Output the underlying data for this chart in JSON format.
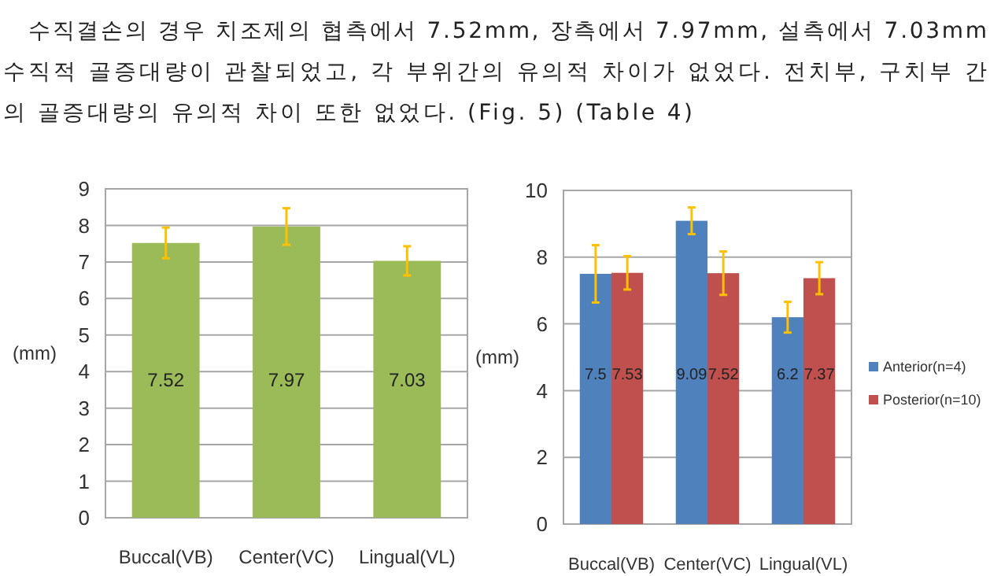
{
  "chart_data": [
    {
      "type": "bar",
      "annotations": [
        "수직결손의 경우 치조제의 협측에서 7.52mm, 장측에서 7.97mm, 설측에서 7.03mm",
        "수직적 골증대량이 관찰되었고, 각 부위간의 유의적 차이가 없었다. 전치부, 구치부 간",
        "의 골증대량의 유의적 차이 또한 없었다. (Fig. 5) (Table 4)"
      ],
      "ylabel": "(mm)",
      "categories": [
        "Buccal(VB)",
        "Center(VC)",
        "Lingual(VL)"
      ],
      "series": [
        {
          "color": "#9bbb59",
          "values": [
            7.52,
            7.97,
            7.03
          ],
          "errors": [
            0.42,
            0.5,
            0.4
          ]
        }
      ],
      "ylim": [
        0,
        9
      ],
      "yticks": [
        0,
        1,
        2,
        3,
        4,
        5,
        6,
        7,
        8,
        9
      ],
      "grid": "y",
      "data_labels": true
    },
    {
      "type": "bar",
      "ylabel": "(mm)",
      "categories": [
        "Buccal(VB)",
        "Center(VC)",
        "Lingual(VL)"
      ],
      "series": [
        {
          "name": "Anterior(n=4)",
          "color": "#4f81bd",
          "values": [
            7.5,
            9.09,
            6.2
          ],
          "errors": [
            0.86,
            0.4,
            0.46
          ]
        },
        {
          "name": "Posterior(n=10)",
          "color": "#c0504d",
          "values": [
            7.53,
            7.52,
            7.37
          ],
          "errors": [
            0.5,
            0.65,
            0.48
          ]
        }
      ],
      "ylim": [
        0,
        10
      ],
      "yticks": [
        0,
        2,
        4,
        6,
        8,
        10
      ],
      "grid": "y",
      "data_labels": true,
      "legend": "right"
    }
  ]
}
